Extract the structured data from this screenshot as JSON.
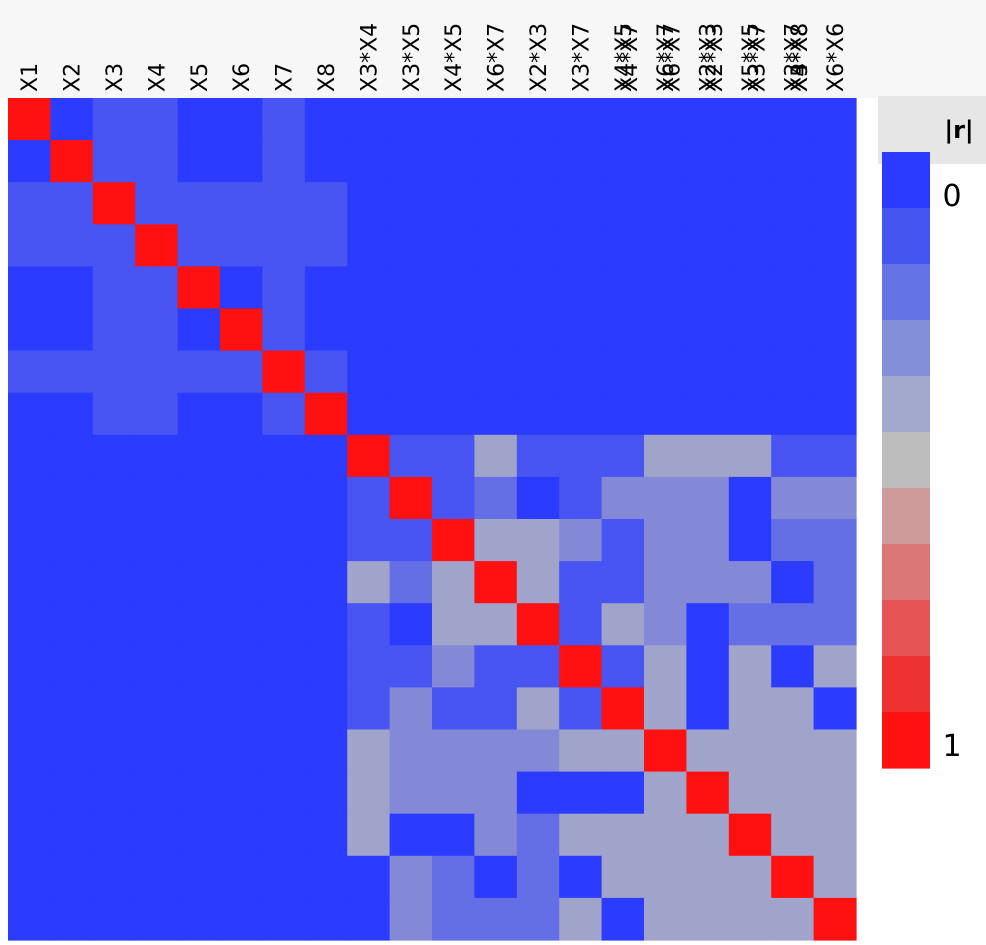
{
  "chart_data": {
    "type": "heatmap",
    "title": "",
    "variables": [
      "X1",
      "X2",
      "X3",
      "X4",
      "X5",
      "X6",
      "X7",
      "X8",
      "X3*X4",
      "X3*X5",
      "X4*X5",
      "X6*X7",
      "X2*X3",
      "X3*X7",
      "X4*X5",
      "X4*X7",
      "X6*X7",
      "X6*X7",
      "X2*X3",
      "X2*X3",
      "X5*X5",
      "X3*X7",
      "X6*X6",
      "X4*X8",
      "X5*X8"
    ],
    "row_count": 20,
    "column_labels": [
      "X1",
      "X2",
      "X3",
      "X4",
      "X5",
      "X6",
      "X7",
      "X8",
      "X3*X4",
      "X3*X5",
      "X4*X5",
      "X6*X7",
      "X2*X3",
      "X3*X7",
      "X4*X5",
      "X6*X7",
      "X2*X3",
      "X5*X5",
      "X3*X7",
      "X6*X6"
    ],
    "column_labels_overlapping": [
      "X4*X7",
      "X6*X7",
      "X2*X3",
      "X3*X7",
      "X4*X8",
      "X5*X8"
    ],
    "values": [
      [
        1,
        0,
        0.1,
        0.1,
        0,
        0,
        0.1,
        0,
        0,
        0,
        0,
        0,
        0,
        0,
        0,
        0,
        0,
        0,
        0,
        0
      ],
      [
        0,
        1,
        0.1,
        0.1,
        0,
        0,
        0.1,
        0,
        0,
        0,
        0,
        0,
        0,
        0,
        0,
        0,
        0,
        0,
        0,
        0
      ],
      [
        0.1,
        0.1,
        1,
        0.1,
        0.1,
        0.1,
        0.1,
        0.1,
        0,
        0,
        0,
        0,
        0,
        0,
        0,
        0,
        0,
        0,
        0,
        0
      ],
      [
        0.1,
        0.1,
        0.1,
        1,
        0.1,
        0.1,
        0.1,
        0.1,
        0,
        0,
        0,
        0,
        0,
        0,
        0,
        0,
        0,
        0,
        0,
        0
      ],
      [
        0,
        0,
        0.1,
        0.1,
        1,
        0,
        0.1,
        0,
        0,
        0,
        0,
        0,
        0,
        0,
        0,
        0,
        0,
        0,
        0,
        0
      ],
      [
        0,
        0,
        0.1,
        0.1,
        0,
        1,
        0.1,
        0,
        0,
        0,
        0,
        0,
        0,
        0,
        0,
        0,
        0,
        0,
        0,
        0
      ],
      [
        0.1,
        0.1,
        0.1,
        0.1,
        0.1,
        0.1,
        1,
        0.1,
        0,
        0,
        0,
        0,
        0,
        0,
        0,
        0,
        0,
        0,
        0,
        0
      ],
      [
        0,
        0,
        0.1,
        0.1,
        0,
        0,
        0.1,
        1,
        0,
        0,
        0,
        0,
        0,
        0,
        0,
        0,
        0,
        0,
        0,
        0
      ],
      [
        0,
        0,
        0,
        0,
        0,
        0,
        0,
        0,
        1,
        0.1,
        0.1,
        0.4,
        0.1,
        0.1,
        0.1,
        0.4,
        0.4,
        0.4,
        0.1,
        0.1
      ],
      [
        0,
        0,
        0,
        0,
        0,
        0,
        0,
        0,
        0.1,
        1,
        0.1,
        0.2,
        0,
        0.1,
        0.3,
        0.3,
        0.3,
        0,
        0.3,
        0.3
      ],
      [
        0,
        0,
        0,
        0,
        0,
        0,
        0,
        0,
        0.1,
        0.1,
        1,
        0.4,
        0.4,
        0.3,
        0.1,
        0.3,
        0.3,
        0,
        0.2,
        0.2
      ],
      [
        0,
        0,
        0,
        0,
        0,
        0,
        0,
        0,
        0.4,
        0.2,
        0.4,
        1,
        0.4,
        0.1,
        0.1,
        0.3,
        0.3,
        0.3,
        0,
        0.2
      ],
      [
        0,
        0,
        0,
        0,
        0,
        0,
        0,
        0,
        0.1,
        0,
        0.4,
        0.4,
        1,
        0.1,
        0.4,
        0.3,
        0,
        0.2,
        0.2,
        0.2
      ],
      [
        0,
        0,
        0,
        0,
        0,
        0,
        0,
        0,
        0.1,
        0.1,
        0.3,
        0.1,
        0.1,
        1,
        0.1,
        0.4,
        0,
        0.4,
        0,
        0.4
      ],
      [
        0,
        0,
        0,
        0,
        0,
        0,
        0,
        0,
        0.1,
        0.3,
        0.1,
        0.1,
        0.4,
        0.1,
        1,
        0.4,
        0,
        0.4,
        0.4,
        0
      ],
      [
        0,
        0,
        0,
        0,
        0,
        0,
        0,
        0,
        0.4,
        0.3,
        0.3,
        0.3,
        0.3,
        0.4,
        0.4,
        1,
        0.4,
        0.4,
        0.4,
        0.4
      ],
      [
        0,
        0,
        0,
        0,
        0,
        0,
        0,
        0,
        0.4,
        0.3,
        0.3,
        0.3,
        0,
        0,
        0,
        0.4,
        1,
        0.4,
        0.4,
        0.4
      ],
      [
        0,
        0,
        0,
        0,
        0,
        0,
        0,
        0,
        0.4,
        0,
        0,
        0.3,
        0.2,
        0.4,
        0.4,
        0.4,
        0.4,
        1,
        0.4,
        0.4
      ],
      [
        0,
        0,
        0,
        0,
        0,
        0,
        0,
        0,
        0,
        0.3,
        0.2,
        0,
        0.2,
        0,
        0.4,
        0.4,
        0.4,
        0.4,
        1,
        0.4
      ],
      [
        0,
        0,
        0,
        0,
        0,
        0,
        0,
        0,
        0,
        0.3,
        0.2,
        0.2,
        0.2,
        0.4,
        0,
        0.4,
        0.4,
        0.4,
        0.4,
        1
      ]
    ],
    "legend": {
      "title": "|r|",
      "min_label": "0",
      "max_label": "1",
      "range": [
        0,
        1
      ],
      "colors": [
        "#2b3bff",
        "#4556f0",
        "#6473e5",
        "#8390d9",
        "#a2a9cd",
        "#bdbdbd",
        "#cf9a9a",
        "#dc7777",
        "#e55555",
        "#ee3232",
        "#ff1111"
      ]
    },
    "colorscale": {
      "low": "#2b3bff",
      "mid": "#bdbdbd",
      "high": "#ff1111"
    },
    "grid": false,
    "legend_position": "right"
  }
}
